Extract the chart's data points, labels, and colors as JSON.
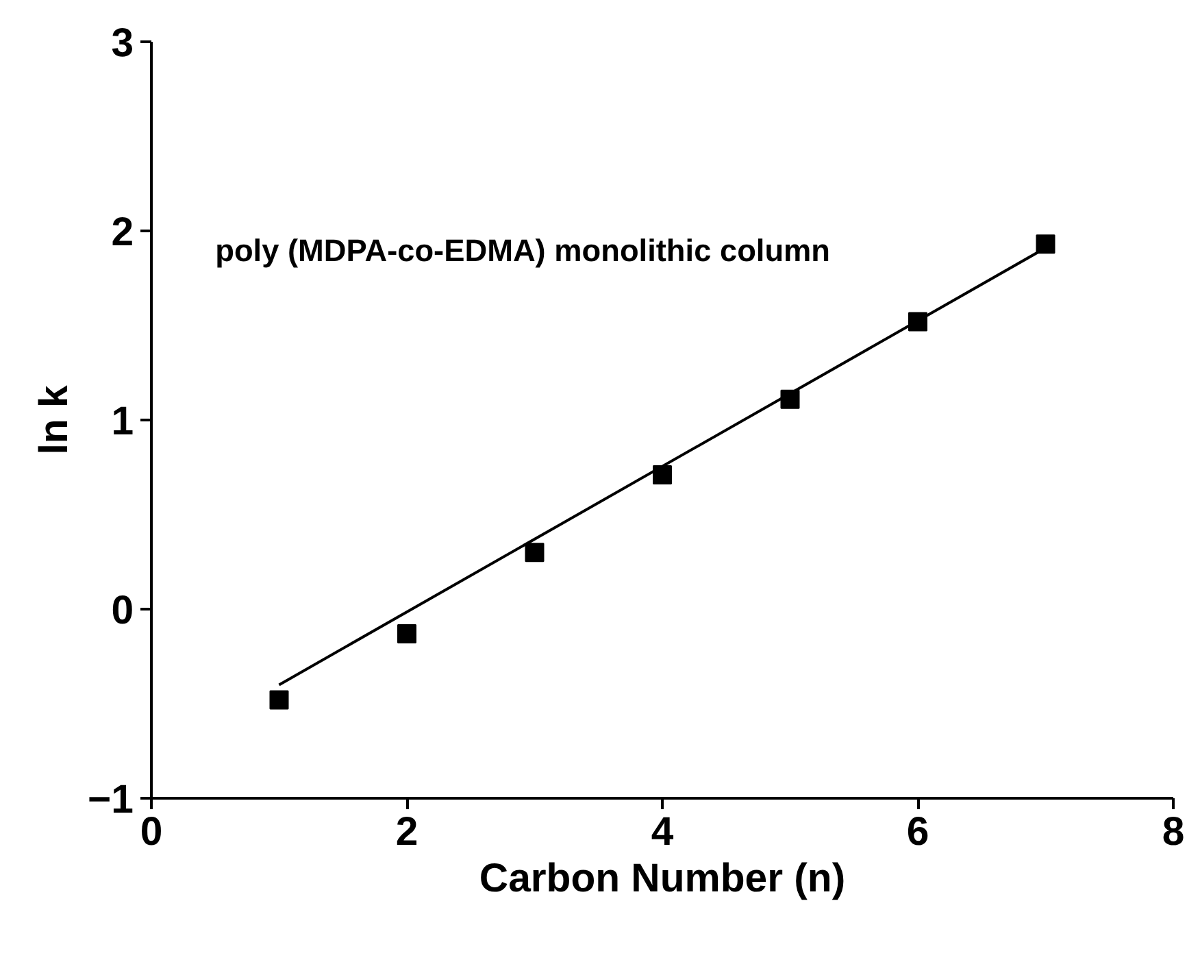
{
  "chart_data": {
    "type": "scatter",
    "xlabel": "Carbon Number (n)",
    "ylabel": "ln k",
    "annotations": [
      "poly (MDPA-co-EDMA) monolithic column"
    ],
    "x": [
      1,
      2,
      3,
      4,
      5,
      6,
      7
    ],
    "series": [
      {
        "color": "#000000",
        "marker": "square",
        "values": [
          -0.48,
          -0.13,
          0.3,
          0.71,
          1.11,
          1.52,
          1.93
        ]
      },
      {
        "type": "line",
        "color": "#000000",
        "marker": "none",
        "line_style": "solid",
        "x": [
          1,
          7
        ],
        "values": [
          -0.4,
          1.91
        ]
      }
    ],
    "xlim": [
      0,
      8
    ],
    "ylim": [
      -1,
      3
    ],
    "xticks": [
      0,
      2,
      4,
      6,
      8
    ],
    "yticks": [
      -1,
      0,
      1,
      2,
      3
    ],
    "grid": false
  }
}
